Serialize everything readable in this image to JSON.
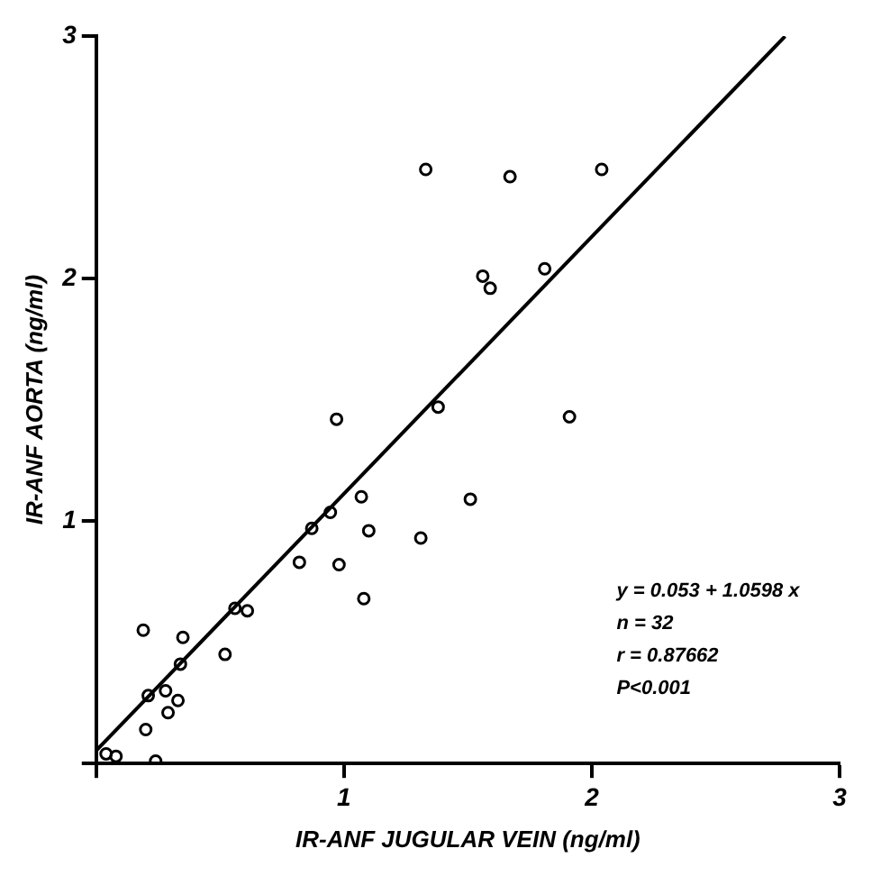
{
  "chart_data": {
    "type": "scatter",
    "xlabel": "IR-ANF JUGULAR VEIN (ng/ml)",
    "ylabel": "IR-ANF AORTA (ng/ml)",
    "xlim": [
      0,
      3
    ],
    "ylim": [
      0,
      3
    ],
    "xticks": [
      {
        "value": 0,
        "label": null
      },
      1,
      2,
      3
    ],
    "yticks": [
      {
        "value": 0,
        "label": null
      },
      1,
      2,
      3
    ],
    "grid": false,
    "legend": false,
    "marker": "circle",
    "series": [
      {
        "type": "scatter",
        "color": "#000000",
        "x": [
          1.33,
          1.67,
          2.04,
          1.56,
          1.59,
          1.81,
          1.38,
          0.97,
          1.91,
          1.07,
          1.51,
          0.945,
          0.87,
          1.1,
          1.31,
          0.82,
          0.98,
          1.08,
          0.56,
          0.61,
          0.19,
          0.35,
          0.52,
          0.34,
          0.21,
          0.28,
          0.33,
          0.29,
          0.2,
          0.04,
          0.08,
          0.24
        ],
        "values": [
          2.45,
          2.42,
          2.45,
          2.01,
          1.96,
          2.04,
          1.47,
          1.42,
          1.43,
          1.1,
          1.09,
          1.036,
          0.97,
          0.96,
          0.93,
          0.83,
          0.82,
          0.68,
          0.64,
          0.63,
          0.55,
          0.52,
          0.45,
          0.41,
          0.28,
          0.3,
          0.26,
          0.21,
          0.14,
          0.04,
          0.03,
          0.01
        ]
      },
      {
        "type": "line",
        "color": "#000000",
        "x": [
          0,
          2.78
        ],
        "values": [
          0.053,
          2.999
        ],
        "marker": "none",
        "line_style": "solid"
      }
    ],
    "annotations": [
      "y = 0.053 + 1.0598 x",
      "n = 32",
      "r = 0.87662",
      "P<0.001"
    ]
  }
}
